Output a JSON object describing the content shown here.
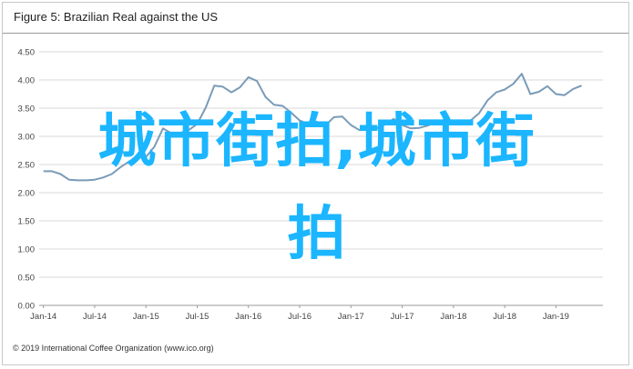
{
  "figure": {
    "title": "Figure 5: Brazilian Real against the US",
    "copyright": "© 2019 International Coffee Organization (www.ico.org)"
  },
  "overlay": {
    "line1": "城市街拍,城市街",
    "line2": "拍",
    "color": "#1bb6ff"
  },
  "chart_data": {
    "type": "line",
    "title": "Figure 5: Brazilian Real against the US",
    "xlabel": "",
    "ylabel": "",
    "ylim": [
      0,
      4.5
    ],
    "yticks": [
      "0.00",
      "0.50",
      "1.00",
      "1.50",
      "2.00",
      "2.50",
      "3.00",
      "3.50",
      "4.00",
      "4.50"
    ],
    "xticks": [
      "Jan-14",
      "Jul-14",
      "Jan-15",
      "Jul-15",
      "Jan-16",
      "Jul-16",
      "Jan-17",
      "Jul-17",
      "Jan-18",
      "Jul-18",
      "Jan-19"
    ],
    "grid": "horizontal",
    "line_color": "#7a9bb8",
    "series": [
      {
        "name": "",
        "x": [
          "2014-01",
          "2014-02",
          "2014-03",
          "2014-04",
          "2014-05",
          "2014-06",
          "2014-07",
          "2014-08",
          "2014-09",
          "2014-10",
          "2014-11",
          "2014-12",
          "2015-01",
          "2015-02",
          "2015-03",
          "2015-04",
          "2015-05",
          "2015-06",
          "2015-07",
          "2015-08",
          "2015-09",
          "2015-10",
          "2015-11",
          "2015-12",
          "2016-01",
          "2016-02",
          "2016-03",
          "2016-04",
          "2016-05",
          "2016-06",
          "2016-07",
          "2016-08",
          "2016-09",
          "2016-10",
          "2016-11",
          "2016-12",
          "2017-01",
          "2017-02",
          "2017-03",
          "2017-04",
          "2017-05",
          "2017-06",
          "2017-07",
          "2017-08",
          "2017-09",
          "2017-10",
          "2017-11",
          "2017-12",
          "2018-01",
          "2018-02",
          "2018-03",
          "2018-04",
          "2018-05",
          "2018-06",
          "2018-07",
          "2018-08",
          "2018-09",
          "2018-10",
          "2018-11",
          "2018-12",
          "2019-01",
          "2019-02",
          "2019-03",
          "2019-04"
        ],
        "values": [
          2.38,
          2.38,
          2.33,
          2.23,
          2.22,
          2.22,
          2.23,
          2.27,
          2.33,
          2.45,
          2.55,
          2.64,
          2.63,
          2.82,
          3.14,
          3.05,
          3.06,
          3.11,
          3.22,
          3.51,
          3.9,
          3.88,
          3.78,
          3.87,
          4.05,
          3.98,
          3.7,
          3.56,
          3.54,
          3.42,
          3.28,
          3.22,
          3.26,
          3.19,
          3.34,
          3.35,
          3.2,
          3.11,
          3.13,
          3.14,
          3.21,
          3.31,
          3.2,
          3.14,
          3.15,
          3.19,
          3.26,
          3.29,
          3.21,
          3.24,
          3.28,
          3.41,
          3.64,
          3.78,
          3.83,
          3.93,
          4.11,
          3.75,
          3.79,
          3.89,
          3.75,
          3.73,
          3.84,
          3.9
        ]
      }
    ]
  }
}
